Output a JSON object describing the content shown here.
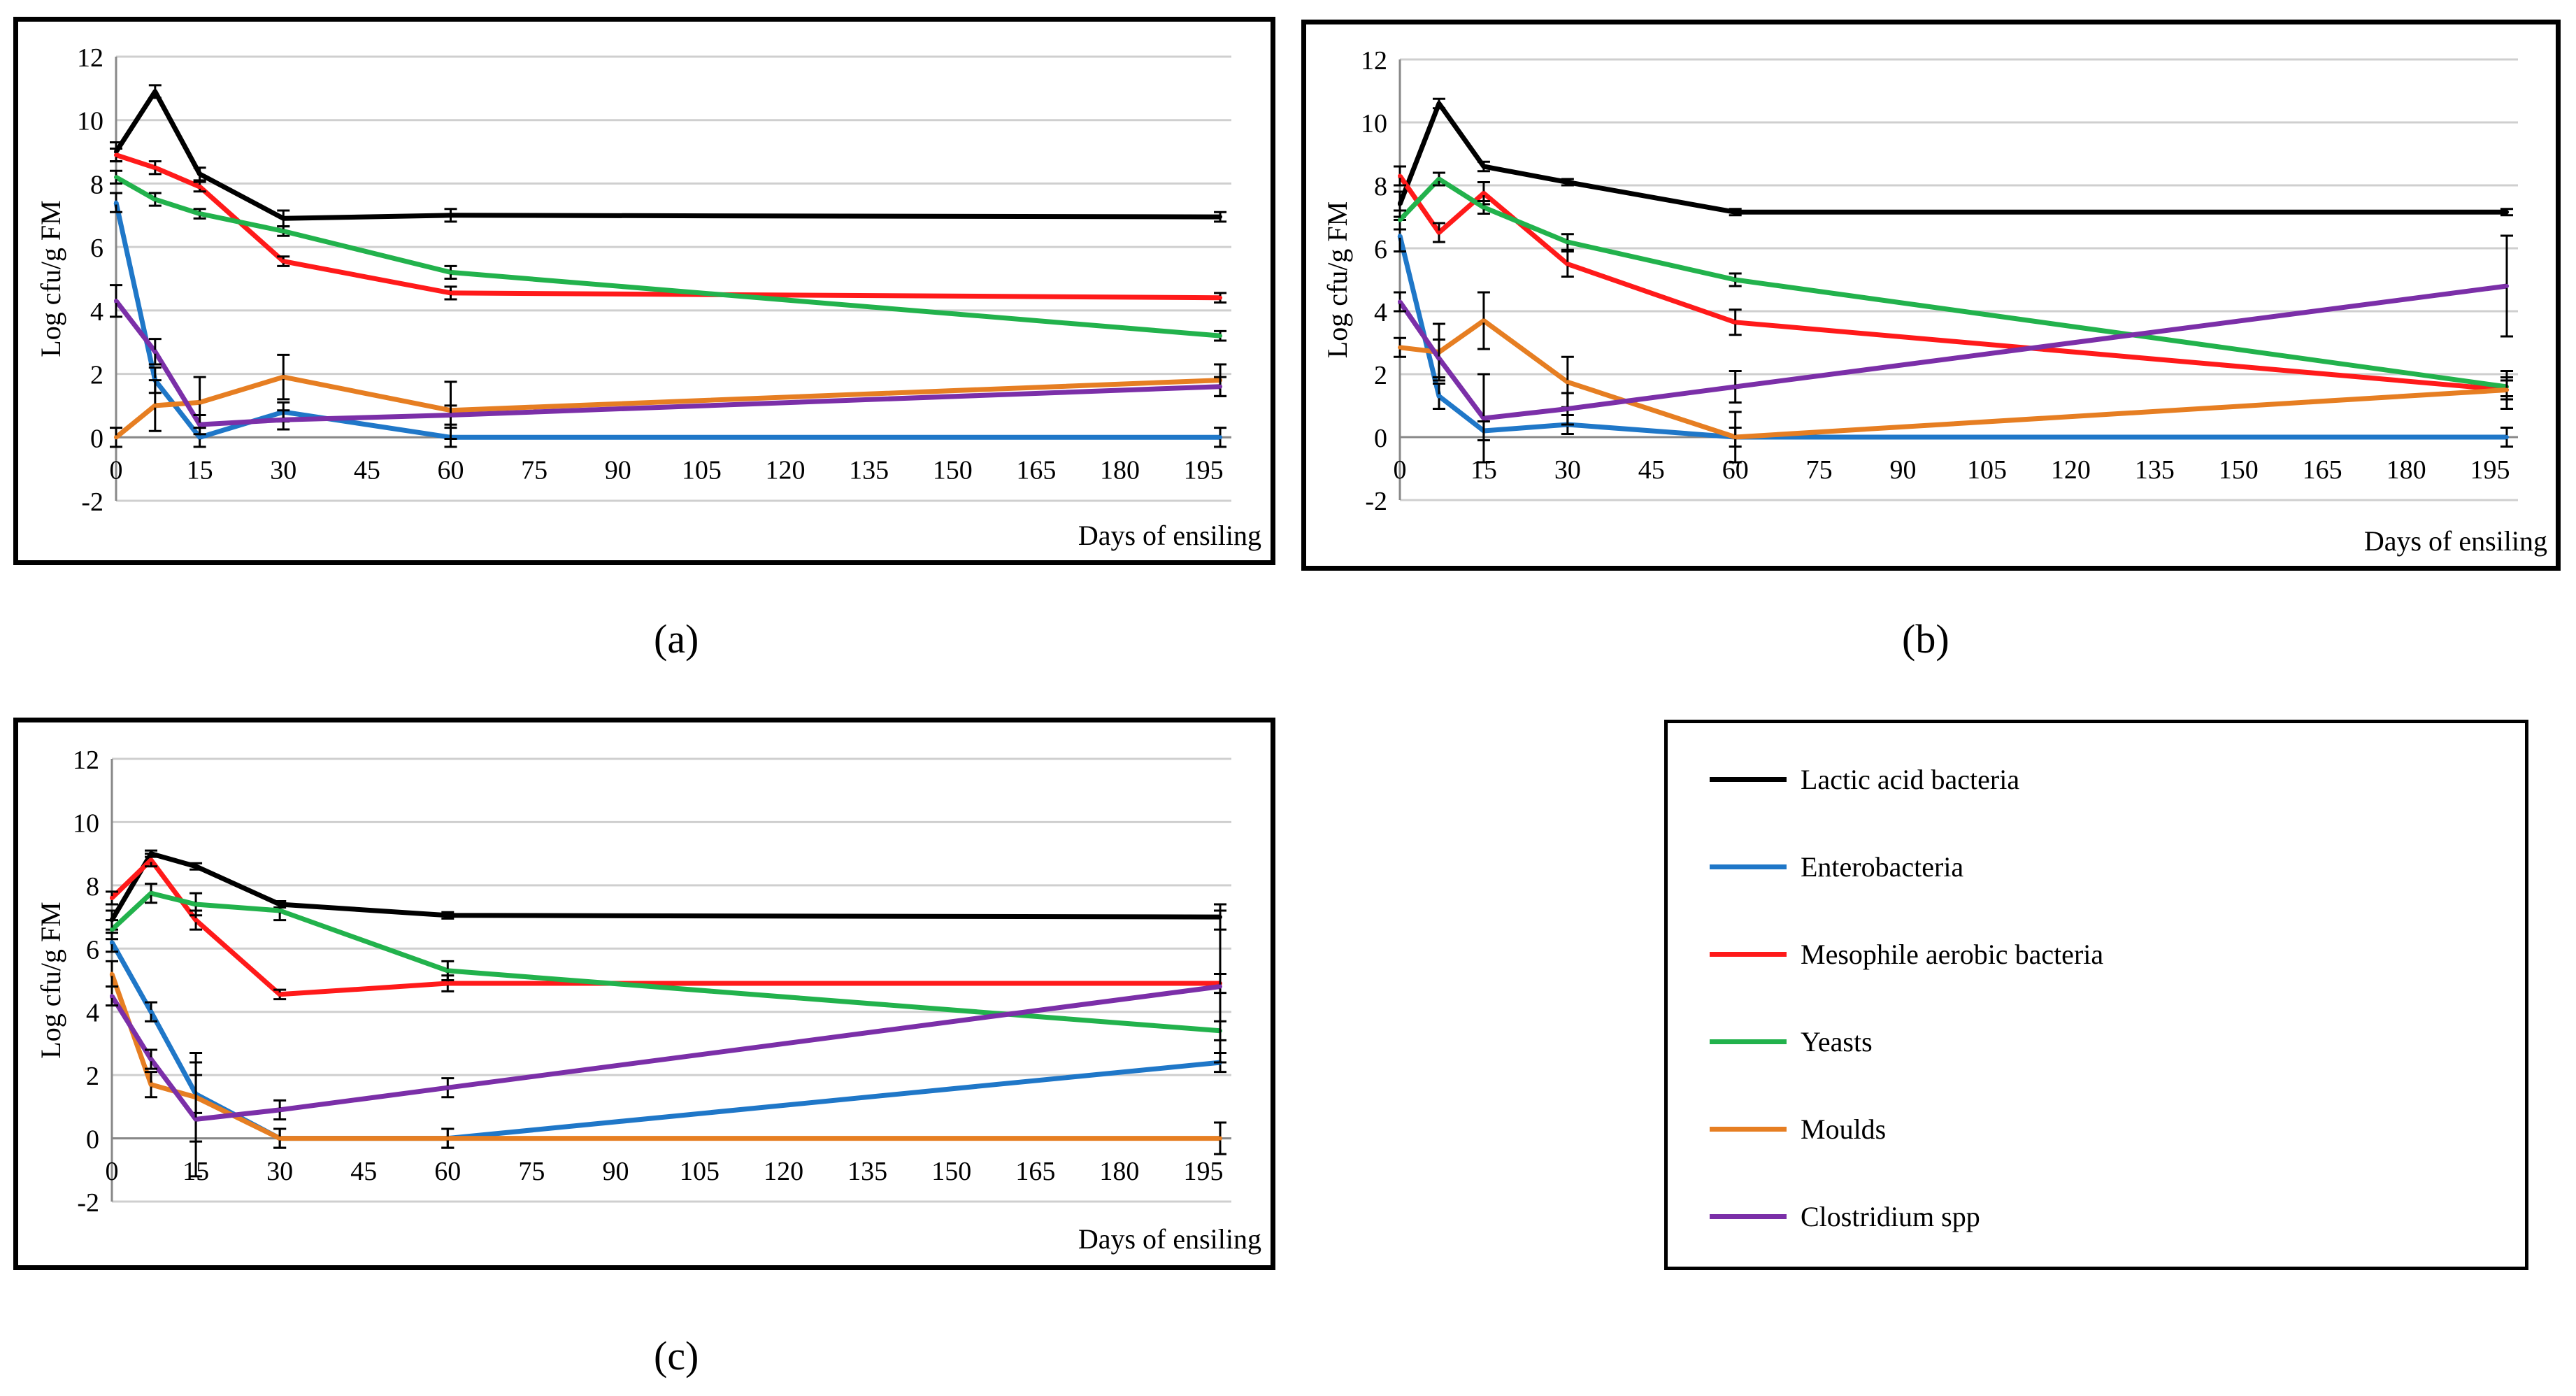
{
  "captions": {
    "a": "(a)",
    "b": "(b)",
    "c": "(c)"
  },
  "legend": [
    {
      "name": "Lactic acid bacteria",
      "color": "#000000"
    },
    {
      "name": "Enterobacteria",
      "color": "#1f77c8"
    },
    {
      "name": "Mesophile aerobic bacteria",
      "color": "#ff1a1a"
    },
    {
      "name": "Yeasts",
      "color": "#22b24c"
    },
    {
      "name": "Moulds",
      "color": "#e67e22"
    },
    {
      "name": "Clostridium spp",
      "color": "#7b2fa8"
    }
  ],
  "chart_data": [
    {
      "panel": "(a)",
      "type": "line",
      "xlabel": "Days of ensiling",
      "ylabel": "Log cfu/g FM",
      "xlim": [
        0,
        200
      ],
      "ylim": [
        -2,
        12
      ],
      "xticks": [
        0,
        15,
        30,
        45,
        60,
        75,
        90,
        105,
        120,
        135,
        150,
        165,
        180,
        195
      ],
      "yticks": [
        -2,
        0,
        2,
        4,
        6,
        8,
        10,
        12
      ],
      "x": [
        0,
        7,
        15,
        30,
        60,
        198
      ],
      "series": [
        {
          "name": "Lactic acid bacteria",
          "color": "#000000",
          "values": [
            9.0,
            10.9,
            8.3,
            6.9,
            7.0,
            6.95
          ],
          "errors": [
            0.3,
            0.2,
            0.2,
            0.25,
            0.2,
            0.15
          ]
        },
        {
          "name": "Enterobacteria",
          "color": "#1f77c8",
          "values": [
            7.4,
            1.8,
            0.0,
            0.8,
            0.0,
            0.0
          ],
          "errors": [
            0.3,
            0.4,
            0.3,
            0.3,
            0.3,
            0.3
          ]
        },
        {
          "name": "Mesophile aerobic bacteria",
          "color": "#ff1a1a",
          "values": [
            8.9,
            8.5,
            7.9,
            5.55,
            4.55,
            4.4
          ],
          "errors": [
            0.2,
            0.2,
            0.15,
            0.15,
            0.2,
            0.15
          ]
        },
        {
          "name": "Yeasts",
          "color": "#22b24c",
          "values": [
            8.2,
            7.5,
            7.05,
            6.5,
            5.2,
            3.2
          ],
          "errors": [
            0.2,
            0.2,
            0.15,
            0.15,
            0.2,
            0.15
          ]
        },
        {
          "name": "Moulds",
          "color": "#e67e22",
          "values": [
            0.0,
            1.0,
            1.1,
            1.9,
            0.85,
            1.8
          ],
          "errors": [
            0.3,
            0.8,
            0.8,
            0.7,
            0.9,
            0.5
          ]
        },
        {
          "name": "Clostridium spp",
          "color": "#7b2fa8",
          "values": [
            4.3,
            2.7,
            0.4,
            0.55,
            0.7,
            1.6
          ],
          "errors": [
            0.5,
            0.4,
            0.3,
            0.3,
            0.3,
            0.3
          ]
        }
      ]
    },
    {
      "panel": "(b)",
      "type": "line",
      "xlabel": "Days of ensiling",
      "ylabel": "Log cfu/g FM",
      "xlim": [
        0,
        200
      ],
      "ylim": [
        -2,
        12
      ],
      "xticks": [
        0,
        15,
        30,
        45,
        60,
        75,
        90,
        105,
        120,
        135,
        150,
        165,
        180,
        195
      ],
      "yticks": [
        -2,
        0,
        2,
        4,
        6,
        8,
        10,
        12
      ],
      "x": [
        0,
        7,
        15,
        30,
        60,
        198
      ],
      "series": [
        {
          "name": "Lactic acid bacteria",
          "color": "#000000",
          "values": [
            7.4,
            10.6,
            8.6,
            8.1,
            7.15,
            7.15
          ],
          "errors": [
            0.4,
            0.15,
            0.15,
            0.1,
            0.1,
            0.1
          ]
        },
        {
          "name": "Enterobacteria",
          "color": "#1f77c8",
          "values": [
            6.4,
            1.3,
            0.2,
            0.4,
            0.0,
            0.0
          ],
          "errors": [
            0.5,
            0.4,
            0.3,
            0.3,
            0.3,
            0.3
          ]
        },
        {
          "name": "Mesophile aerobic bacteria",
          "color": "#ff1a1a",
          "values": [
            8.3,
            6.5,
            7.75,
            5.5,
            3.65,
            1.5
          ],
          "errors": [
            0.3,
            0.3,
            0.35,
            0.4,
            0.4,
            0.3
          ]
        },
        {
          "name": "Yeasts",
          "color": "#22b24c",
          "values": [
            6.9,
            8.2,
            7.3,
            6.2,
            5.0,
            1.6
          ],
          "errors": [
            0.3,
            0.2,
            0.2,
            0.25,
            0.2,
            0.3
          ]
        },
        {
          "name": "Moulds",
          "color": "#e67e22",
          "values": [
            2.85,
            2.7,
            3.7,
            1.75,
            0.0,
            1.5
          ],
          "errors": [
            0.3,
            0.9,
            0.9,
            0.8,
            0.8,
            0.6
          ]
        },
        {
          "name": "Clostridium spp",
          "color": "#7b2fa8",
          "values": [
            4.3,
            2.5,
            0.6,
            0.9,
            1.6,
            4.8
          ],
          "errors": [
            0.3,
            0.6,
            1.4,
            0.5,
            0.5,
            1.6
          ]
        }
      ]
    },
    {
      "panel": "(c)",
      "type": "line",
      "xlabel": "Days of ensiling",
      "ylabel": "Log cfu/g FM",
      "xlim": [
        0,
        200
      ],
      "ylim": [
        -2,
        12
      ],
      "xticks": [
        0,
        15,
        30,
        45,
        60,
        75,
        90,
        105,
        120,
        135,
        150,
        165,
        180,
        195
      ],
      "yticks": [
        -2,
        0,
        2,
        4,
        6,
        8,
        10,
        12
      ],
      "x": [
        0,
        7,
        15,
        30,
        60,
        198
      ],
      "series": [
        {
          "name": "Lactic acid bacteria",
          "color": "#000000",
          "values": [
            6.9,
            9.0,
            8.6,
            7.4,
            7.05,
            7.0
          ],
          "errors": [
            0.3,
            0.1,
            0.1,
            0.1,
            0.1,
            0.4
          ]
        },
        {
          "name": "Enterobacteria",
          "color": "#1f77c8",
          "values": [
            6.2,
            4.0,
            1.4,
            0.0,
            0.0,
            2.4
          ],
          "errors": [
            0.3,
            0.3,
            0.6,
            0.3,
            0.3,
            0.3
          ]
        },
        {
          "name": "Mesophile aerobic bacteria",
          "color": "#ff1a1a",
          "values": [
            7.6,
            8.8,
            6.9,
            4.55,
            4.9,
            4.9
          ],
          "errors": [
            0.2,
            0.2,
            0.3,
            0.15,
            0.25,
            0.3
          ]
        },
        {
          "name": "Yeasts",
          "color": "#22b24c",
          "values": [
            6.6,
            7.75,
            7.4,
            7.2,
            5.3,
            3.4
          ],
          "errors": [
            0.3,
            0.3,
            0.35,
            0.3,
            0.3,
            0.3
          ]
        },
        {
          "name": "Moulds",
          "color": "#e67e22",
          "values": [
            5.2,
            1.7,
            1.3,
            0.0,
            0.0,
            0.0
          ],
          "errors": [
            0.4,
            0.4,
            1.4,
            0.3,
            0.3,
            0.5
          ]
        },
        {
          "name": "Clostridium spp",
          "color": "#7b2fa8",
          "values": [
            4.5,
            2.5,
            0.6,
            0.9,
            1.6,
            4.8
          ],
          "errors": [
            0.3,
            0.3,
            1.8,
            0.3,
            0.3,
            2.4
          ]
        }
      ]
    }
  ]
}
